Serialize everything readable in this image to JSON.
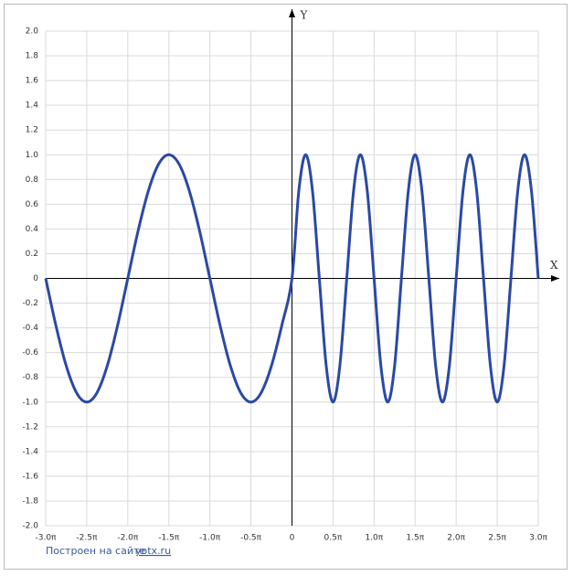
{
  "chart_data": {
    "type": "line",
    "x_label": "X",
    "y_label": "Y",
    "color": "#2a49a6",
    "grid": true,
    "xlim": [
      -3,
      3
    ],
    "ylim": [
      -2,
      2
    ],
    "xticks": [
      {
        "value": -3,
        "label": "-3.0π"
      },
      {
        "value": -2.5,
        "label": "-2.5π"
      },
      {
        "value": -2,
        "label": "-2.0π"
      },
      {
        "value": -1.5,
        "label": "-1.5π"
      },
      {
        "value": -1,
        "label": "-1.0π"
      },
      {
        "value": -0.5,
        "label": "-0.5π"
      },
      0,
      {
        "value": 0.5,
        "label": "0.5π"
      },
      {
        "value": 1,
        "label": "1.0π"
      },
      {
        "value": 1.5,
        "label": "1.5π"
      },
      {
        "value": 2,
        "label": "2.0π"
      },
      {
        "value": 2.5,
        "label": "2.5π"
      },
      {
        "value": 3,
        "label": "3.0π"
      }
    ],
    "yticks": [
      {
        "value": 2,
        "label": "2.0"
      },
      1.8,
      1.6,
      1.4,
      1.2,
      {
        "value": 1,
        "label": "1.0"
      },
      0.8,
      0.6,
      0.4,
      0.2,
      0,
      -0.2,
      -0.4,
      -0.6,
      -0.8,
      {
        "value": -1,
        "label": "-1.0"
      },
      -1.2,
      -1.4,
      -1.6,
      -1.8,
      {
        "value": -2,
        "label": "-2.0"
      }
    ],
    "x": [
      -3,
      -2.875,
      -2.75,
      -2.625,
      -2.5,
      -2.375,
      -2.25,
      -2.125,
      -2,
      -1.875,
      -1.75,
      -1.625,
      -1.5,
      -1.375,
      -1.25,
      -1.125,
      -1,
      -0.875,
      -0.75,
      -0.625,
      -0.5,
      -0.375,
      -0.25,
      -0.125,
      0,
      0.083,
      0.167,
      0.25,
      0.333,
      0.417,
      0.5,
      0.583,
      0.667,
      0.75,
      0.833,
      0.917,
      1,
      1.083,
      1.167,
      1.25,
      1.333,
      1.417,
      1.5,
      1.583,
      1.667,
      1.75,
      1.833,
      1.917,
      2,
      2.083,
      2.167,
      2.25,
      2.333,
      2.417,
      2.5,
      2.583,
      2.667,
      2.75,
      2.833,
      2.917,
      3
    ],
    "values": [
      0,
      -0.383,
      -0.707,
      -0.924,
      -1,
      -0.924,
      -0.707,
      -0.383,
      0,
      0.383,
      0.707,
      0.924,
      1,
      0.924,
      0.707,
      0.383,
      0,
      -0.383,
      -0.707,
      -0.924,
      -1,
      -0.924,
      -0.707,
      -0.383,
      0,
      0.707,
      1,
      0.707,
      0,
      -0.707,
      -1,
      -0.707,
      0,
      0.707,
      1,
      0.707,
      0,
      -0.707,
      -1,
      -0.707,
      0,
      0.707,
      1,
      0.707,
      0,
      -0.707,
      -1,
      -0.707,
      0,
      0.707,
      1,
      0.707,
      0,
      -0.707,
      -1,
      -0.707,
      0,
      0.707,
      1,
      0.707,
      0
    ]
  },
  "footer": {
    "text": "Построен на сайте",
    "link": "yotx.ru"
  }
}
